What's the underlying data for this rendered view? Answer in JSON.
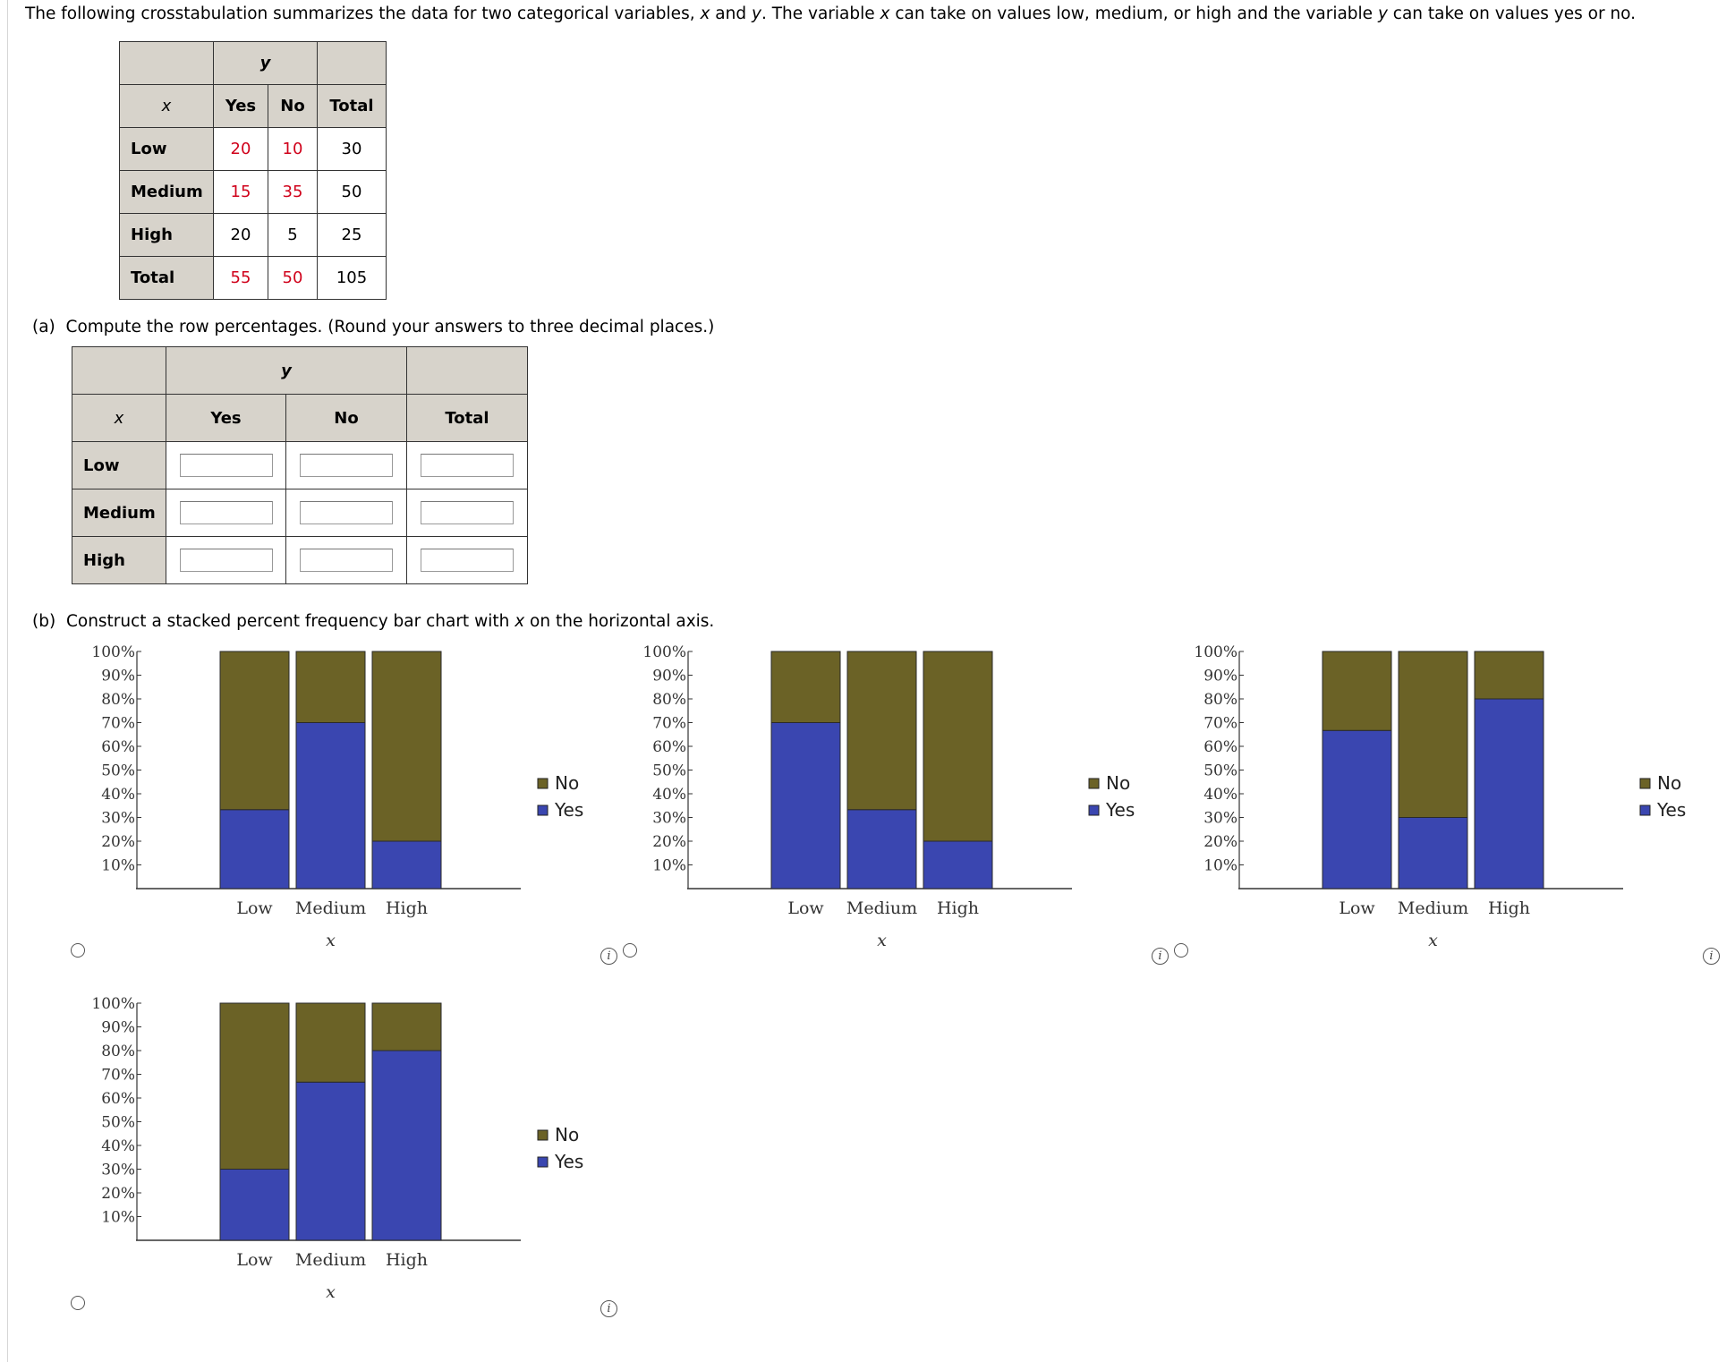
{
  "intro": {
    "part1": "The following crosstabulation summarizes the data for two categorical variables, ",
    "x": "x",
    "part2": " and ",
    "y": "y",
    "part3": ". The variable ",
    "part4": " can take on values low, medium, or high and the variable ",
    "part5": " can take on values yes or no."
  },
  "crosstab": {
    "y_header": "y",
    "x_header": "x",
    "col_headers": [
      "Yes",
      "No",
      "Total"
    ],
    "rows": [
      {
        "label": "Low",
        "yes": "20",
        "no": "10",
        "total": "30"
      },
      {
        "label": "Medium",
        "yes": "15",
        "no": "35",
        "total": "50"
      },
      {
        "label": "High",
        "yes": "20",
        "no": "5",
        "total": "25"
      },
      {
        "label": "Total",
        "yes": "55",
        "no": "50",
        "total": "105"
      }
    ],
    "highlight_color": "#d0021b"
  },
  "part_a": {
    "label": "(a)",
    "text": "Compute the row percentages. (Round your answers to three decimal places.)",
    "y_header": "y",
    "x_header": "x",
    "col_headers": [
      "Yes",
      "No",
      "Total"
    ],
    "rows": [
      {
        "label": "Low",
        "yes": "",
        "no": "",
        "total": ""
      },
      {
        "label": "Medium",
        "yes": "",
        "no": "",
        "total": ""
      },
      {
        "label": "High",
        "yes": "",
        "no": "",
        "total": ""
      }
    ]
  },
  "part_b": {
    "label": "(b)",
    "text_before": "Construct a stacked percent frequency bar chart with ",
    "x": "x",
    "text_after": " on the horizontal axis."
  },
  "chart_data": [
    {
      "type": "bar",
      "stacked": true,
      "categories": [
        "Low",
        "Medium",
        "High"
      ],
      "series": [
        {
          "name": "Yes",
          "values": [
            33.3,
            70,
            20
          ],
          "color": "#3a46b0"
        },
        {
          "name": "No",
          "values": [
            66.7,
            30,
            80
          ],
          "color": "#6b6226"
        }
      ],
      "xlabel": "x",
      "ylim": [
        0,
        100
      ],
      "yticks": [
        "10%",
        "20%",
        "30%",
        "40%",
        "50%",
        "60%",
        "70%",
        "80%",
        "90%",
        "100%"
      ],
      "legend": "right"
    },
    {
      "type": "bar",
      "stacked": true,
      "categories": [
        "Low",
        "Medium",
        "High"
      ],
      "series": [
        {
          "name": "Yes",
          "values": [
            70,
            33.3,
            20
          ],
          "color": "#3a46b0"
        },
        {
          "name": "No",
          "values": [
            30,
            66.7,
            80
          ],
          "color": "#6b6226"
        }
      ],
      "xlabel": "x",
      "ylim": [
        0,
        100
      ],
      "yticks": [
        "10%",
        "20%",
        "30%",
        "40%",
        "50%",
        "60%",
        "70%",
        "80%",
        "90%",
        "100%"
      ],
      "legend": "right"
    },
    {
      "type": "bar",
      "stacked": true,
      "categories": [
        "Low",
        "Medium",
        "High"
      ],
      "series": [
        {
          "name": "Yes",
          "values": [
            66.7,
            30,
            80
          ],
          "color": "#3a46b0"
        },
        {
          "name": "No",
          "values": [
            33.3,
            70,
            20
          ],
          "color": "#6b6226"
        }
      ],
      "xlabel": "x",
      "ylim": [
        0,
        100
      ],
      "yticks": [
        "10%",
        "20%",
        "30%",
        "40%",
        "50%",
        "60%",
        "70%",
        "80%",
        "90%",
        "100%"
      ],
      "legend": "right"
    },
    {
      "type": "bar",
      "stacked": true,
      "categories": [
        "Low",
        "Medium",
        "High"
      ],
      "series": [
        {
          "name": "Yes",
          "values": [
            30,
            66.7,
            80
          ],
          "color": "#3a46b0"
        },
        {
          "name": "No",
          "values": [
            70,
            33.3,
            20
          ],
          "color": "#6b6226"
        }
      ],
      "xlabel": "x",
      "ylim": [
        0,
        100
      ],
      "yticks": [
        "10%",
        "20%",
        "30%",
        "40%",
        "50%",
        "60%",
        "70%",
        "80%",
        "90%",
        "100%"
      ],
      "legend": "right"
    }
  ],
  "options": [
    {
      "radio_icon": "radio-button",
      "info_icon": "info-icon",
      "info_symbol": "i"
    },
    {
      "radio_icon": "radio-button",
      "info_icon": "info-icon",
      "info_symbol": "i"
    },
    {
      "radio_icon": "radio-button",
      "info_icon": "info-icon",
      "info_symbol": "i"
    },
    {
      "radio_icon": "radio-button",
      "info_icon": "info-icon",
      "info_symbol": "i"
    }
  ]
}
